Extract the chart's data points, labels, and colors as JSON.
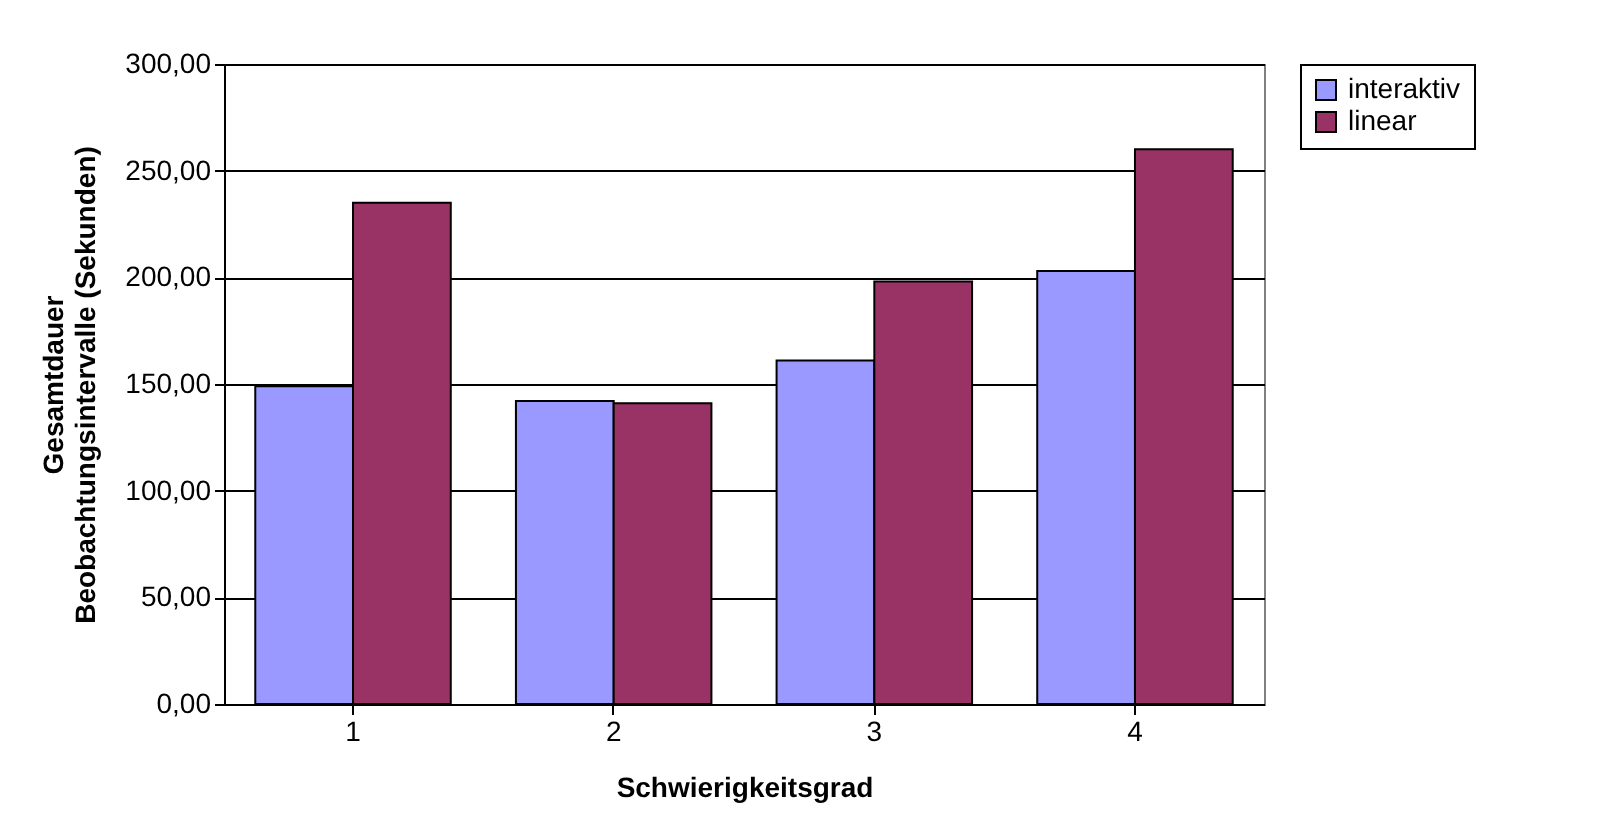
{
  "chart_data": {
    "type": "bar",
    "xlabel": "Schwierigkeitsgrad",
    "ylabel": "Gesamtdauer Beobachtungsintervalle (Sekunden)",
    "categories": [
      "1",
      "2",
      "3",
      "4"
    ],
    "series": [
      {
        "name": "interaktiv",
        "color": "#9999ff",
        "values": [
          149,
          142,
          161,
          203
        ]
      },
      {
        "name": "linear",
        "color": "#993366",
        "values": [
          235,
          141,
          198,
          260
        ]
      }
    ],
    "ylim": [
      0,
      300
    ],
    "yticks": [
      {
        "value": 0,
        "label": "0,00"
      },
      {
        "value": 50,
        "label": "50,00"
      },
      {
        "value": 100,
        "label": "100,00"
      },
      {
        "value": 150,
        "label": "150,00"
      },
      {
        "value": 200,
        "label": "200,00"
      },
      {
        "value": 250,
        "label": "250,00"
      },
      {
        "value": 300,
        "label": "300,00"
      }
    ],
    "grid": "y",
    "legend": "right"
  }
}
